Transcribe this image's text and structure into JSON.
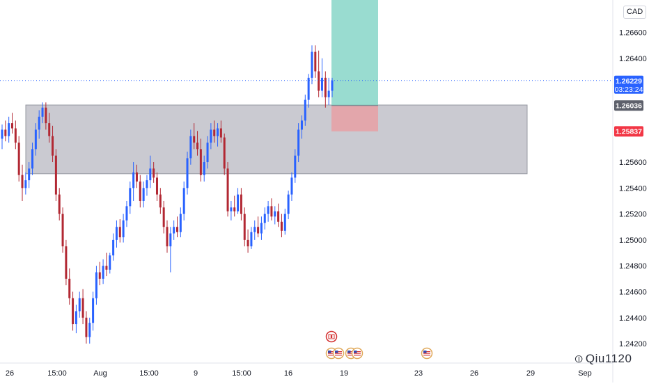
{
  "currency_label": "CAD",
  "watermark": "Qiu1120",
  "colors": {
    "up": "#2962ff",
    "down": "#b22833",
    "zone_fill": "#b8b8c2",
    "profit_fill": "#7fd3c4",
    "loss_fill": "#e8a0a4",
    "price_line": "#2962ff",
    "axis_text": "#131722"
  },
  "price_tags": {
    "current": {
      "value": "1.26229",
      "countdown": "03:23:24",
      "color": "#2962ff"
    },
    "entry": {
      "value": "1.26036",
      "color": "#5d606b"
    },
    "stop": {
      "value": "1.25837",
      "color": "#f23645"
    }
  },
  "event_icons": [
    {
      "name": "canada-flag-event-icon",
      "date": "Aug 18"
    },
    {
      "name": "us-flag-event-icon",
      "date": "Aug 18"
    },
    {
      "name": "us-flag-event-icon",
      "date": "Aug 18"
    },
    {
      "name": "us-flag-event-icon",
      "date": "Aug 19"
    },
    {
      "name": "us-flag-event-icon",
      "date": "Aug 19"
    },
    {
      "name": "us-flag-event-icon",
      "date": "Aug 23"
    }
  ],
  "chart_data": {
    "type": "candlestick",
    "symbol_quote": "CAD",
    "ylim": [
      1.2405,
      1.2685
    ],
    "y_ticks": [
      "1.26600",
      "1.26400",
      "1.25600",
      "1.25400",
      "1.25200",
      "1.25000",
      "1.24800",
      "1.24600",
      "1.24400",
      "1.24200"
    ],
    "x_ticks": [
      "26",
      "15:00",
      "Aug",
      "15:00",
      "9",
      "15:00",
      "16",
      "19",
      "23",
      "26",
      "29",
      "Sep"
    ],
    "current_price": 1.26229,
    "demand_zone": {
      "from": 1.2551,
      "to": 1.2604
    },
    "long_position": {
      "entry": 1.26036,
      "stop": 1.25837,
      "target": 1.2685
    },
    "candles": [
      [
        1.2578,
        1.2589,
        1.257,
        1.2585
      ],
      [
        1.2585,
        1.2592,
        1.2576,
        1.258
      ],
      [
        1.258,
        1.2595,
        1.2575,
        1.259
      ],
      [
        1.259,
        1.2598,
        1.2582,
        1.2586
      ],
      [
        1.2586,
        1.2592,
        1.257,
        1.2575
      ],
      [
        1.2575,
        1.258,
        1.2545,
        1.255
      ],
      [
        1.255,
        1.2558,
        1.253,
        1.254
      ],
      [
        1.254,
        1.2552,
        1.2535,
        1.2546
      ],
      [
        1.2546,
        1.256,
        1.254,
        1.2555
      ],
      [
        1.2555,
        1.2575,
        1.255,
        1.257
      ],
      [
        1.257,
        1.259,
        1.2565,
        1.2585
      ],
      [
        1.2585,
        1.26,
        1.2578,
        1.2595
      ],
      [
        1.2595,
        1.2606,
        1.259,
        1.2602
      ],
      [
        1.2602,
        1.2606,
        1.2585,
        1.259
      ],
      [
        1.259,
        1.2598,
        1.2575,
        1.258
      ],
      [
        1.258,
        1.2588,
        1.256,
        1.2565
      ],
      [
        1.2565,
        1.257,
        1.253,
        1.2535
      ],
      [
        1.2535,
        1.254,
        1.2515,
        1.252
      ],
      [
        1.252,
        1.2525,
        1.249,
        1.2495
      ],
      [
        1.2495,
        1.25,
        1.2465,
        1.247
      ],
      [
        1.247,
        1.2478,
        1.245,
        1.2455
      ],
      [
        1.2455,
        1.246,
        1.243,
        1.2435
      ],
      [
        1.2435,
        1.245,
        1.2428,
        1.2445
      ],
      [
        1.2445,
        1.246,
        1.244,
        1.2455
      ],
      [
        1.2455,
        1.2462,
        1.2435,
        1.244
      ],
      [
        1.244,
        1.2445,
        1.242,
        1.2425
      ],
      [
        1.2425,
        1.244,
        1.242,
        1.2436
      ],
      [
        1.2436,
        1.246,
        1.243,
        1.2455
      ],
      [
        1.2455,
        1.248,
        1.245,
        1.2475
      ],
      [
        1.2475,
        1.2483,
        1.2465,
        1.247
      ],
      [
        1.247,
        1.2485,
        1.2466,
        1.248
      ],
      [
        1.248,
        1.249,
        1.2472,
        1.2477
      ],
      [
        1.2477,
        1.249,
        1.2474,
        1.2488
      ],
      [
        1.2488,
        1.2505,
        1.2484,
        1.25
      ],
      [
        1.25,
        1.2515,
        1.2494,
        1.251
      ],
      [
        1.251,
        1.2516,
        1.2498,
        1.2502
      ],
      [
        1.2502,
        1.252,
        1.2498,
        1.2515
      ],
      [
        1.2515,
        1.253,
        1.251,
        1.2526
      ],
      [
        1.2526,
        1.2545,
        1.252,
        1.254
      ],
      [
        1.254,
        1.256,
        1.253,
        1.2552
      ],
      [
        1.2552,
        1.2558,
        1.254,
        1.2545
      ],
      [
        1.2545,
        1.255,
        1.2525,
        1.253
      ],
      [
        1.253,
        1.2545,
        1.2525,
        1.254
      ],
      [
        1.254,
        1.255,
        1.2534,
        1.2546
      ],
      [
        1.2546,
        1.2565,
        1.254,
        1.2555
      ],
      [
        1.2555,
        1.256,
        1.2544,
        1.2548
      ],
      [
        1.2548,
        1.2552,
        1.253,
        1.2535
      ],
      [
        1.2535,
        1.254,
        1.252,
        1.2525
      ],
      [
        1.2525,
        1.253,
        1.2505,
        1.251
      ],
      [
        1.251,
        1.2515,
        1.249,
        1.2495
      ],
      [
        1.2495,
        1.251,
        1.2475,
        1.2505
      ],
      [
        1.2505,
        1.2515,
        1.25,
        1.251
      ],
      [
        1.251,
        1.2518,
        1.2502,
        1.2506
      ],
      [
        1.2506,
        1.2525,
        1.2502,
        1.252
      ],
      [
        1.252,
        1.2545,
        1.2515,
        1.254
      ],
      [
        1.254,
        1.2568,
        1.2535,
        1.2563
      ],
      [
        1.2563,
        1.2585,
        1.2558,
        1.258
      ],
      [
        1.258,
        1.259,
        1.257,
        1.2575
      ],
      [
        1.2575,
        1.2584,
        1.2565,
        1.257
      ],
      [
        1.257,
        1.2578,
        1.2545,
        1.255
      ],
      [
        1.255,
        1.2565,
        1.2545,
        1.256
      ],
      [
        1.256,
        1.258,
        1.2555,
        1.2575
      ],
      [
        1.2575,
        1.259,
        1.257,
        1.2585
      ],
      [
        1.2585,
        1.2592,
        1.2575,
        1.258
      ],
      [
        1.258,
        1.259,
        1.2572,
        1.2586
      ],
      [
        1.2586,
        1.2592,
        1.2575,
        1.2579
      ],
      [
        1.2579,
        1.2582,
        1.255,
        1.2555
      ],
      [
        1.2555,
        1.256,
        1.2518,
        1.2522
      ],
      [
        1.2522,
        1.253,
        1.2515,
        1.2525
      ],
      [
        1.2525,
        1.2534,
        1.2518,
        1.2522
      ],
      [
        1.2522,
        1.254,
        1.252,
        1.2535
      ],
      [
        1.2535,
        1.254,
        1.2515,
        1.252
      ],
      [
        1.252,
        1.2525,
        1.2495,
        1.25
      ],
      [
        1.25,
        1.2508,
        1.249,
        1.2495
      ],
      [
        1.2495,
        1.251,
        1.2493,
        1.2506
      ],
      [
        1.2506,
        1.2515,
        1.25,
        1.251
      ],
      [
        1.251,
        1.2518,
        1.2502,
        1.2505
      ],
      [
        1.2505,
        1.2518,
        1.25,
        1.2513
      ],
      [
        1.2513,
        1.2525,
        1.2508,
        1.252
      ],
      [
        1.252,
        1.253,
        1.2514,
        1.2526
      ],
      [
        1.2526,
        1.2532,
        1.2515,
        1.2518
      ],
      [
        1.2518,
        1.2526,
        1.2512,
        1.2522
      ],
      [
        1.2522,
        1.2528,
        1.251,
        1.2514
      ],
      [
        1.2514,
        1.252,
        1.2502,
        1.2507
      ],
      [
        1.2507,
        1.2524,
        1.2504,
        1.252
      ],
      [
        1.252,
        1.2538,
        1.2516,
        1.2535
      ],
      [
        1.2535,
        1.2552,
        1.253,
        1.2548
      ],
      [
        1.2548,
        1.257,
        1.2544,
        1.2565
      ],
      [
        1.2565,
        1.259,
        1.256,
        1.2585
      ],
      [
        1.2585,
        1.2596,
        1.2578,
        1.2592
      ],
      [
        1.2592,
        1.2612,
        1.2588,
        1.2608
      ],
      [
        1.2608,
        1.2628,
        1.2602,
        1.2625
      ],
      [
        1.2625,
        1.265,
        1.262,
        1.2645
      ],
      [
        1.2645,
        1.265,
        1.2625,
        1.263
      ],
      [
        1.263,
        1.2646,
        1.261,
        1.2615
      ],
      [
        1.2615,
        1.264,
        1.261,
        1.2625
      ],
      [
        1.2625,
        1.263,
        1.2602,
        1.261
      ],
      [
        1.261,
        1.2625,
        1.2604,
        1.2615
      ],
      [
        1.2615,
        1.2625,
        1.261,
        1.2623
      ]
    ]
  }
}
